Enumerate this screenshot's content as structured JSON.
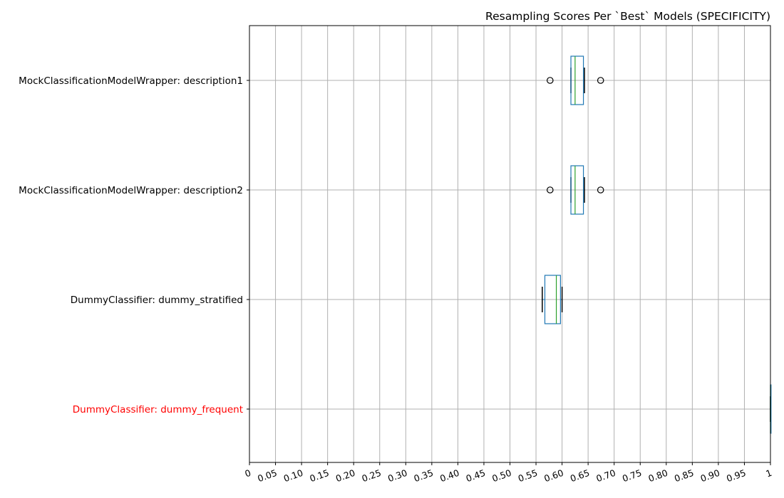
{
  "chart_data": {
    "type": "boxplot",
    "orientation": "horizontal",
    "title": "Resampling Scores Per `Best` Models (SPECIFICITY)",
    "xlabel": "",
    "ylabel": "",
    "xlim": [
      0,
      1
    ],
    "xticks": [
      0,
      0.05,
      0.1,
      0.15,
      0.2,
      0.25,
      0.3,
      0.35,
      0.4,
      0.45,
      0.5,
      0.55,
      0.6,
      0.65,
      0.7,
      0.75,
      0.8,
      0.85,
      0.9,
      0.95,
      1
    ],
    "xtick_labels": [
      "0",
      "0.05",
      "0.10",
      "0.15",
      "0.20",
      "0.25",
      "0.30",
      "0.35",
      "0.40",
      "0.45",
      "0.50",
      "0.55",
      "0.60",
      "0.65",
      "0.70",
      "0.75",
      "0.80",
      "0.85",
      "0.90",
      "0.95",
      "1"
    ],
    "grid": true,
    "colors": {
      "box": "#1f77b4",
      "median": "#2ca02c",
      "whisker": "#000000",
      "highlight_label": "#ff0000",
      "grid": "#b0b0b0"
    },
    "categories": [
      {
        "label": "MockClassificationModelWrapper: description1",
        "highlight": false,
        "whisker_low": 0.617,
        "q1": 0.617,
        "median": 0.625,
        "q3": 0.641,
        "whisker_high": 0.643,
        "outliers": [
          0.577,
          0.674
        ]
      },
      {
        "label": "MockClassificationModelWrapper: description2",
        "highlight": false,
        "whisker_low": 0.617,
        "q1": 0.617,
        "median": 0.625,
        "q3": 0.641,
        "whisker_high": 0.643,
        "outliers": [
          0.577,
          0.674
        ]
      },
      {
        "label": "DummyClassifier: dummy_stratified",
        "highlight": false,
        "whisker_low": 0.562,
        "q1": 0.567,
        "median": 0.589,
        "q3": 0.597,
        "whisker_high": 0.6,
        "outliers": []
      },
      {
        "label": "DummyClassifier: dummy_frequent",
        "highlight": true,
        "whisker_low": 1,
        "q1": 1,
        "median": 1,
        "q3": 1,
        "whisker_high": 1,
        "outliers": []
      }
    ]
  }
}
